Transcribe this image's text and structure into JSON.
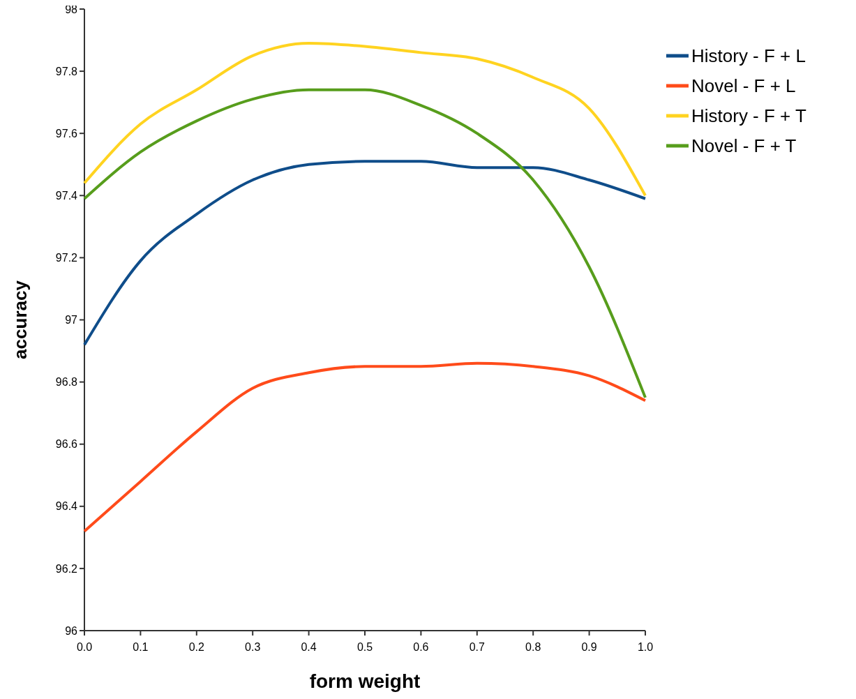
{
  "chart_data": {
    "type": "line",
    "xlabel": "form weight",
    "ylabel": "accuracy",
    "x": [
      0,
      0.1,
      0.2,
      0.3,
      0.4,
      0.5,
      0.6,
      0.7,
      0.8,
      0.9,
      1.0
    ],
    "xlim": [
      0,
      1
    ],
    "xticks": [
      {
        "value": 0,
        "label": "0.0"
      },
      0.1,
      0.2,
      0.3,
      0.4,
      0.5,
      0.6,
      0.7,
      0.8,
      0.9,
      {
        "value": 1,
        "label": "1.0"
      }
    ],
    "ylim": [
      96,
      98
    ],
    "yticks": [
      96,
      96.2,
      96.4,
      96.6,
      96.8,
      97,
      97.2,
      97.4,
      97.6,
      97.8,
      98
    ],
    "grid": false,
    "legend": "top right",
    "marker": "none",
    "line_style": "solid",
    "series": [
      {
        "name": "History - F + L",
        "color": "#0f4d8a",
        "values": [
          96.92,
          97.19,
          97.34,
          97.45,
          97.5,
          97.51,
          97.51,
          97.49,
          97.49,
          97.45,
          97.39
        ]
      },
      {
        "name": "Novel - F + L",
        "color": "#ff4b1a",
        "values": [
          96.32,
          96.48,
          96.64,
          96.78,
          96.83,
          96.85,
          96.85,
          96.86,
          96.85,
          96.82,
          96.74
        ]
      },
      {
        "name": "History - F + T",
        "color": "#ffd320",
        "values": [
          97.44,
          97.63,
          97.74,
          97.85,
          97.89,
          97.88,
          97.86,
          97.84,
          97.78,
          97.68,
          97.4
        ]
      },
      {
        "name": "Novel - F + T",
        "color": "#579d1c",
        "values": [
          97.39,
          97.54,
          97.64,
          97.71,
          97.74,
          97.74,
          97.69,
          97.6,
          97.45,
          97.17,
          96.75
        ]
      }
    ]
  }
}
